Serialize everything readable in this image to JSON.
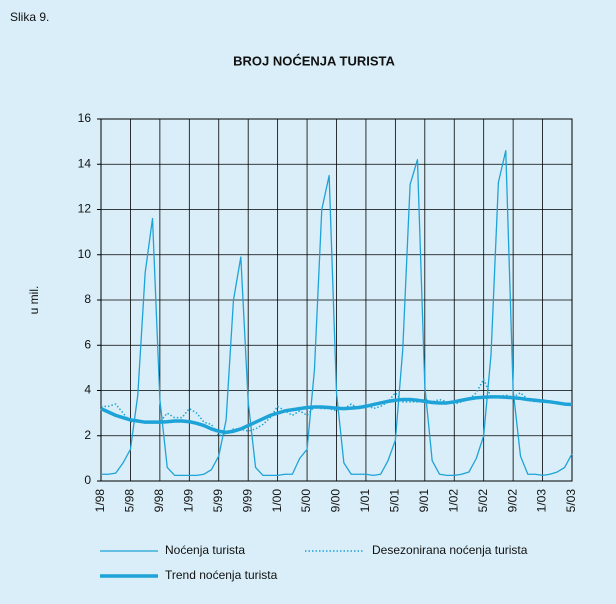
{
  "figure_label": "Slika 9.",
  "chart_data": {
    "type": "line",
    "title": "BROJ NOĆENJA TURISTA",
    "y_label": "u mil.",
    "categories": [
      "1/98",
      null,
      null,
      null,
      "5/98",
      null,
      null,
      null,
      "9/98",
      null,
      null,
      null,
      "1/99",
      null,
      null,
      null,
      "5/99",
      null,
      null,
      null,
      "9/99",
      null,
      null,
      null,
      "1/00",
      null,
      null,
      null,
      "5/00",
      null,
      null,
      null,
      "9/00",
      null,
      null,
      null,
      "1/01",
      null,
      null,
      null,
      "5/01",
      null,
      null,
      null,
      "9/01",
      null,
      null,
      null,
      "1/02",
      null,
      null,
      null,
      "5/02",
      null,
      null,
      null,
      "9/02",
      null,
      null,
      null,
      "1/03",
      null,
      null,
      null,
      "5/03"
    ],
    "ylim": [
      0,
      16
    ],
    "yticks": [
      0,
      2,
      4,
      6,
      8,
      10,
      12,
      14,
      16
    ],
    "grid": true,
    "series": [
      {
        "name": "Noćenja turista",
        "color": "#1ea3d8",
        "width": 1.3,
        "dash": false,
        "values": [
          0.3,
          0.3,
          0.35,
          0.8,
          1.4,
          3.8,
          9.2,
          11.6,
          3.6,
          0.6,
          0.25,
          0.25,
          0.25,
          0.25,
          0.3,
          0.5,
          1.1,
          2.7,
          8.0,
          9.9,
          3.5,
          0.6,
          0.25,
          0.25,
          0.25,
          0.3,
          0.3,
          1.0,
          1.4,
          4.9,
          12.0,
          13.5,
          3.9,
          0.8,
          0.3,
          0.3,
          0.3,
          0.25,
          0.3,
          0.9,
          1.8,
          5.8,
          13.1,
          14.2,
          4.2,
          0.9,
          0.3,
          0.25,
          0.25,
          0.3,
          0.4,
          1.0,
          2.0,
          5.6,
          13.2,
          14.6,
          4.0,
          1.1,
          0.3,
          0.3,
          0.25,
          0.3,
          0.4,
          0.6,
          1.2
        ]
      },
      {
        "name": "Desezonirana noćenja turista",
        "color": "#1ea3d8",
        "width": 1.5,
        "dash": true,
        "values": [
          3.3,
          3.3,
          3.4,
          3.0,
          2.6,
          2.7,
          2.6,
          2.6,
          2.6,
          3.0,
          2.8,
          2.8,
          3.2,
          3.0,
          2.6,
          2.5,
          2.0,
          2.1,
          2.3,
          2.3,
          2.2,
          2.3,
          2.5,
          2.8,
          3.3,
          3.1,
          2.9,
          3.1,
          2.9,
          3.3,
          3.2,
          3.2,
          3.1,
          3.2,
          3.4,
          3.2,
          3.4,
          3.2,
          3.3,
          3.5,
          3.9,
          3.5,
          3.5,
          3.5,
          3.6,
          3.5,
          3.6,
          3.5,
          3.4,
          3.5,
          3.6,
          3.9,
          4.5,
          3.7,
          3.7,
          3.8,
          3.7,
          3.9,
          3.6,
          3.5,
          3.6,
          3.5,
          3.5,
          3.4,
          3.4
        ]
      },
      {
        "name": "Trend noćenja turista",
        "color": "#1ea3d8",
        "width": 3.5,
        "dash": false,
        "values": [
          3.2,
          3.05,
          2.9,
          2.8,
          2.7,
          2.65,
          2.6,
          2.6,
          2.6,
          2.62,
          2.65,
          2.65,
          2.62,
          2.55,
          2.45,
          2.3,
          2.2,
          2.15,
          2.2,
          2.3,
          2.45,
          2.6,
          2.75,
          2.9,
          3.0,
          3.1,
          3.15,
          3.2,
          3.25,
          3.27,
          3.27,
          3.25,
          3.22,
          3.2,
          3.22,
          3.25,
          3.3,
          3.38,
          3.45,
          3.52,
          3.57,
          3.6,
          3.6,
          3.57,
          3.52,
          3.47,
          3.45,
          3.45,
          3.5,
          3.57,
          3.63,
          3.68,
          3.7,
          3.72,
          3.72,
          3.7,
          3.68,
          3.65,
          3.6,
          3.57,
          3.53,
          3.5,
          3.45,
          3.4,
          3.38
        ]
      }
    ]
  }
}
